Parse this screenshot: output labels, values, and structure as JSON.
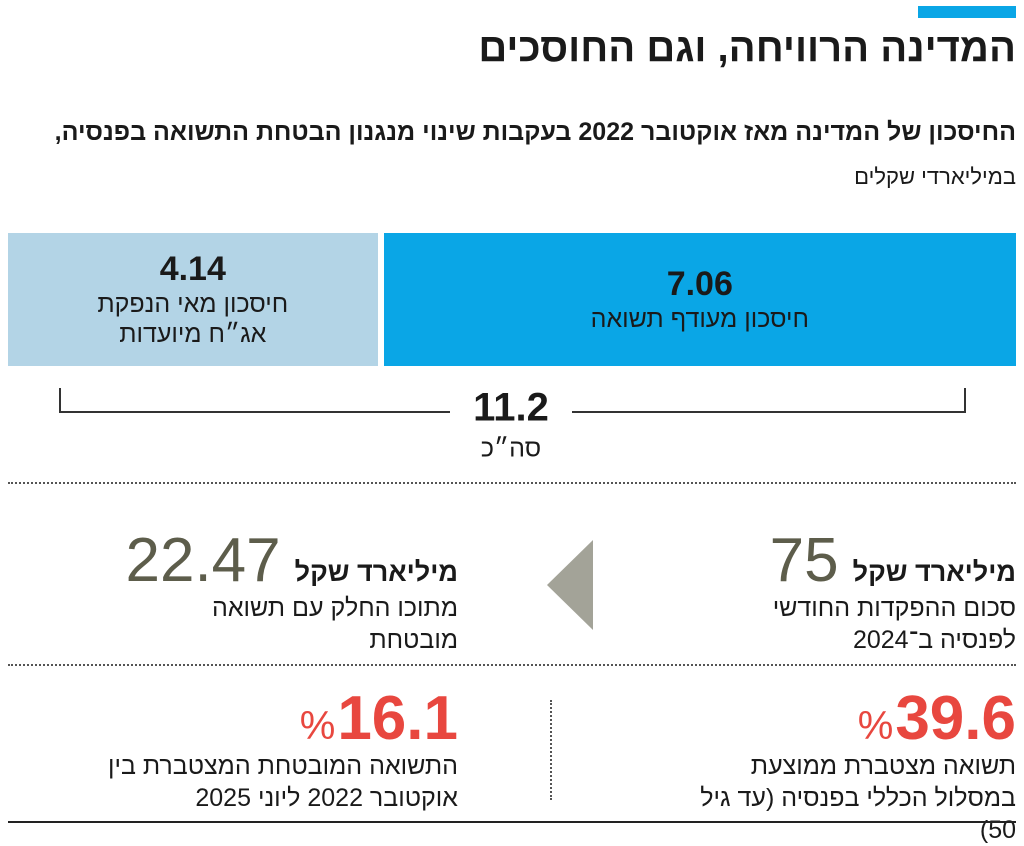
{
  "header": {
    "title": "המדינה הרוויחה, וגם החוסכים",
    "subtitle_bold": "החיסכון של המדינה מאז אוקטובר 2022 בעקבות שינוי מנגנון הבטחת התשואה בפנסיה,",
    "subtitle_unit": "במיליארדי שקלים"
  },
  "split": {
    "segments": [
      {
        "value": 7.06,
        "label": "חיסכון מעודף תשואה",
        "color": "#0aa6e6"
      },
      {
        "value": 4.14,
        "label": "חיסכון מאי הנפקת אג״ח מיועדות",
        "color": "#b3d4e6"
      }
    ],
    "total": {
      "value": 11.2,
      "label": "סה״כ"
    }
  },
  "stats": [
    {
      "value": 75,
      "unit": "מיליארד שקל",
      "text": "סכום ההפקדות החודשי לפנסיה ב־2024"
    },
    {
      "value": 22.47,
      "unit": "מיליארד שקל",
      "text": "מתוכו החלק עם תשואה מובטחת"
    },
    {
      "value": 39.6,
      "unit": "%",
      "text": "תשואה מצטברת ממוצעת במסלול הכללי בפנסיה (עד גיל 50)"
    },
    {
      "value": 16.1,
      "unit": "%",
      "text": "התשואה המובטחת המצטברת בין אוקטובר 2022 ליוני 2025"
    }
  ]
}
